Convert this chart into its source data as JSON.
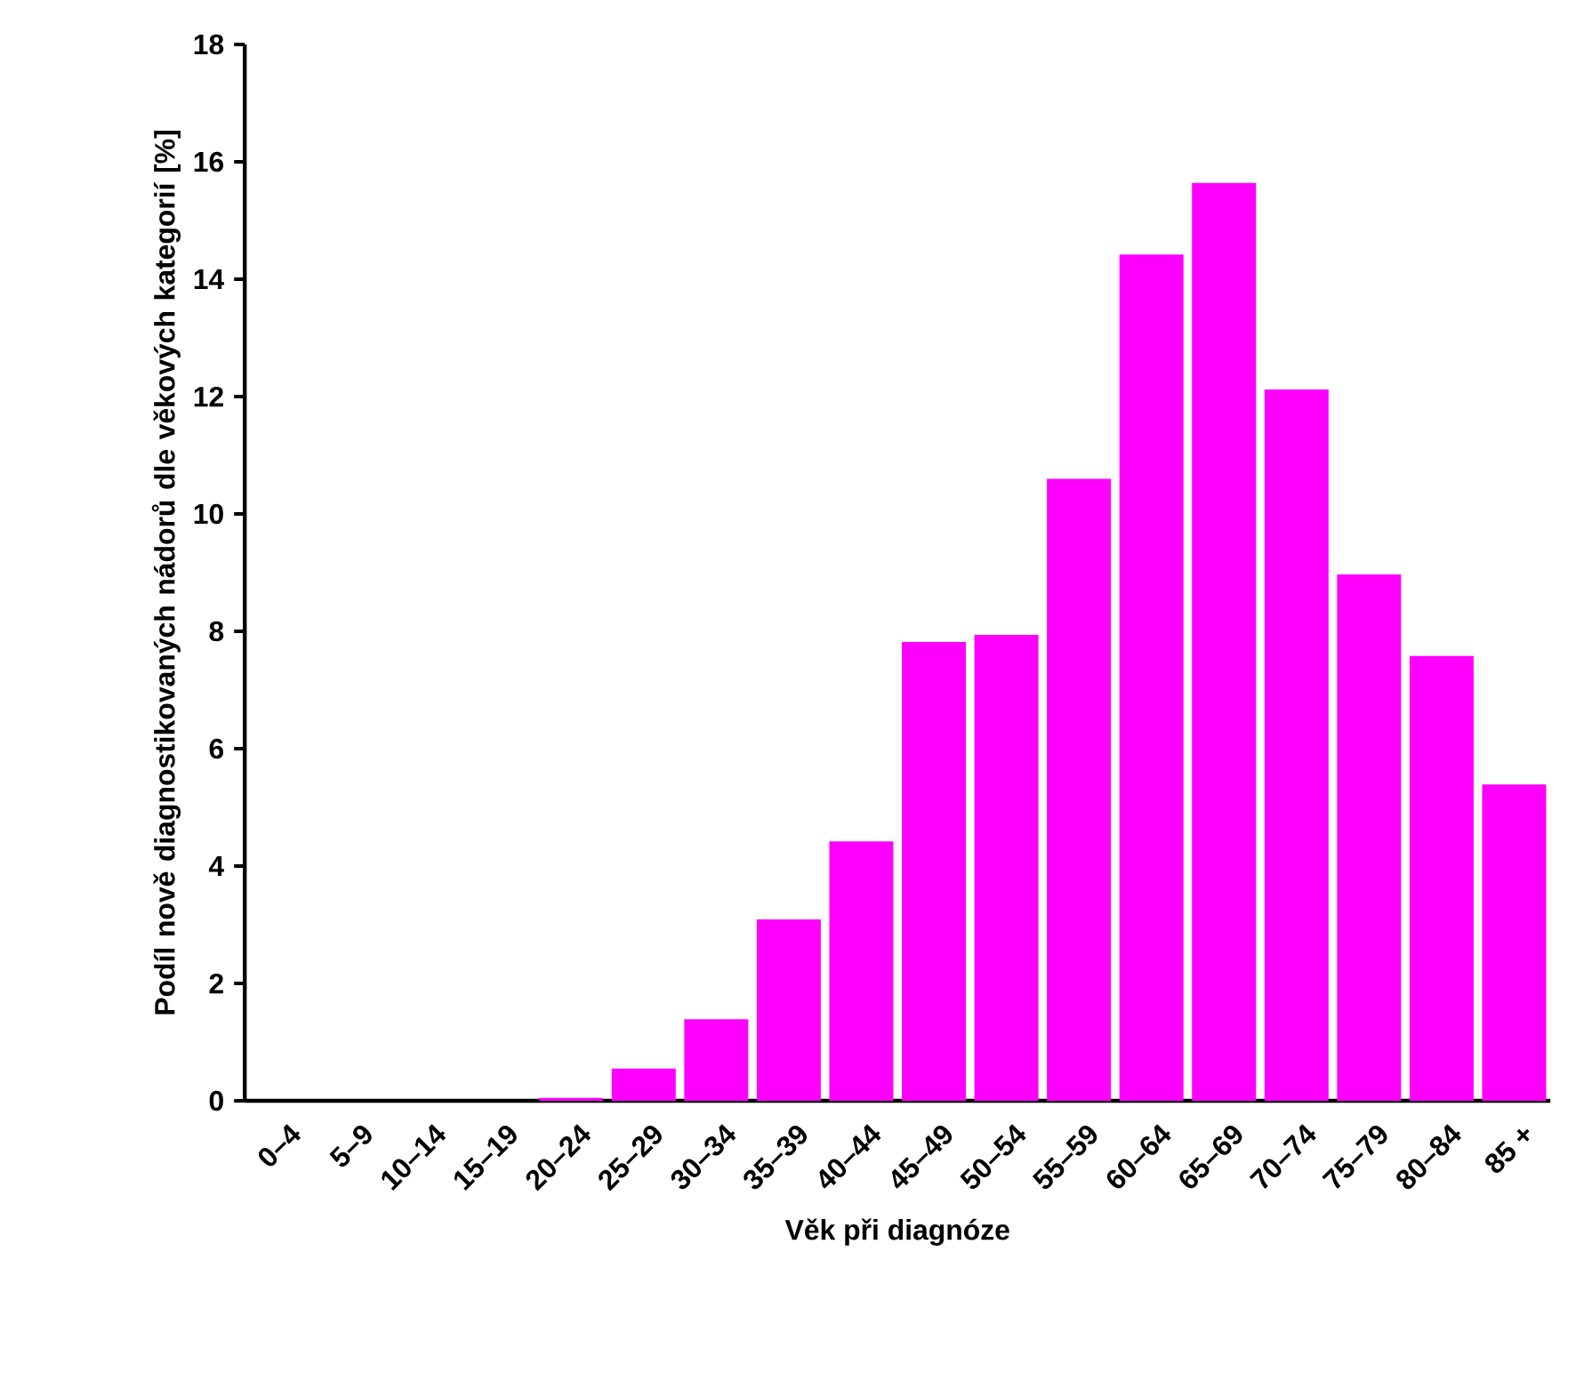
{
  "chart_data": {
    "type": "bar",
    "xlabel": "Věk při diagnóze",
    "ylabel": "Podíl nově diagnostikovaných nádorů dle věkových kategorií [%]",
    "categories": [
      "0–4",
      "5–9",
      "10–14",
      "15–19",
      "20–24",
      "25–29",
      "30–34",
      "35–39",
      "40–44",
      "45–49",
      "50–54",
      "55–59",
      "60–64",
      "65–69",
      "70–74",
      "75–79",
      "80–84",
      "85 +"
    ],
    "values": [
      0,
      0,
      0,
      0,
      0.05,
      0.55,
      1.39,
      3.09,
      4.42,
      7.82,
      7.94,
      10.6,
      14.42,
      15.64,
      12.12,
      8.97,
      7.58,
      5.39
    ],
    "color": "#ff00ff",
    "ylim": [
      0,
      18
    ],
    "yticks": [
      0,
      2,
      4,
      6,
      8,
      10,
      12,
      14,
      16,
      18
    ],
    "grid": false
  }
}
